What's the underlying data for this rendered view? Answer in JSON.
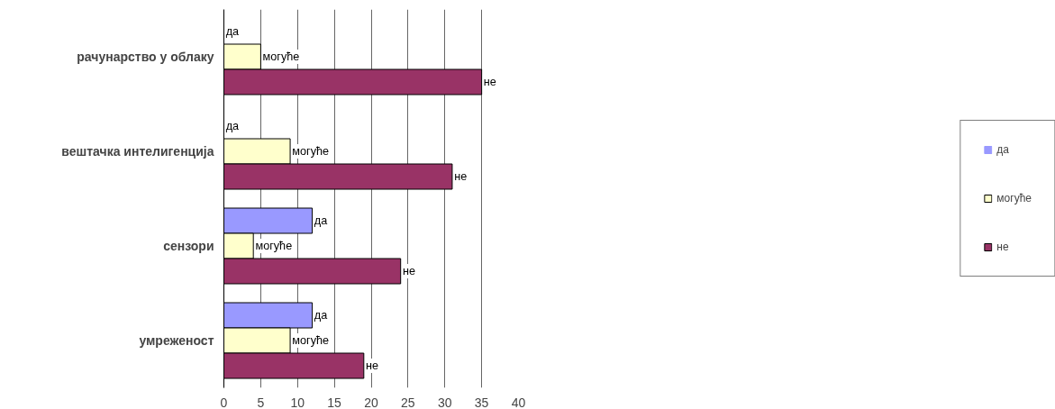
{
  "chart_data": {
    "type": "bar",
    "orientation": "horizontal",
    "categories": [
      "рачунарство у облаку",
      "вештачка интелигенција",
      "сензори",
      "умреженост"
    ],
    "series": [
      {
        "name": "да",
        "color": "#9999ff",
        "values": [
          0,
          0,
          12,
          12
        ],
        "value_labels": [
          "да",
          "да",
          "да",
          "да"
        ]
      },
      {
        "name": "могуће",
        "color": "#ffffcc",
        "values": [
          5,
          9,
          4,
          9
        ],
        "value_labels": [
          "могуће",
          "могуће",
          "могуће",
          "могуће"
        ]
      },
      {
        "name": "не",
        "color": "#993366",
        "values": [
          35,
          31,
          24,
          19
        ],
        "value_labels": [
          "не",
          "не",
          "не",
          "не"
        ]
      }
    ],
    "xlim": [
      0,
      40
    ],
    "xticks": [
      0,
      5,
      10,
      15,
      20,
      25,
      30,
      35,
      40
    ],
    "grid": "x",
    "legend": "right"
  }
}
